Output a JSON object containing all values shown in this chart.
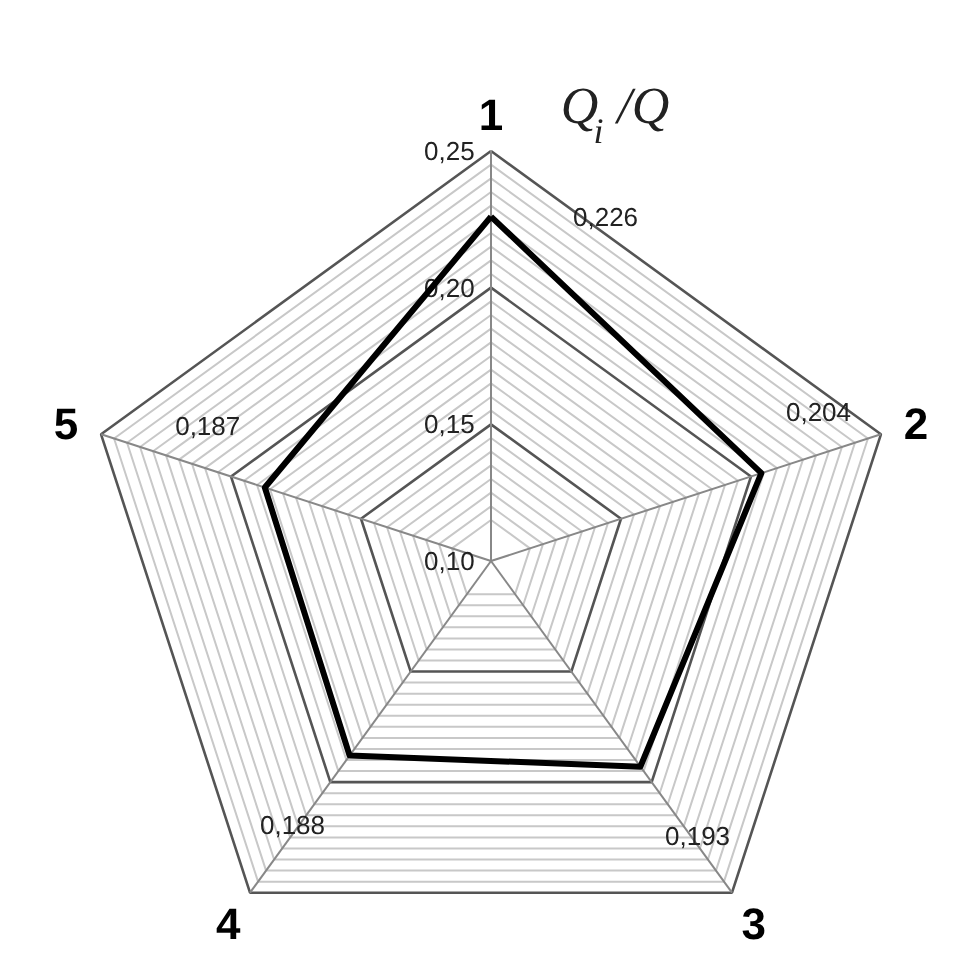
{
  "chart_data": {
    "type": "radar",
    "title": "Q$_{i}$/Q",
    "categories": [
      "1",
      "2",
      "3",
      "4",
      "5"
    ],
    "series": [
      {
        "color": "#000000",
        "values": [
          0.226,
          0.204,
          0.193,
          0.188,
          0.187
        ]
      }
    ],
    "ylim": [
      0.1,
      0.25
    ],
    "yticks": [
      {
        "value": 0.1,
        "label": "0,10"
      },
      {
        "value": 0.15,
        "label": "0,15"
      },
      {
        "value": 0.2,
        "label": "0,20"
      },
      {
        "value": 0.25,
        "label": "0,25"
      }
    ],
    "value_labels": [
      "0,226",
      "0,204",
      "0,193",
      "0,188",
      "0,187"
    ],
    "grid": true
  }
}
